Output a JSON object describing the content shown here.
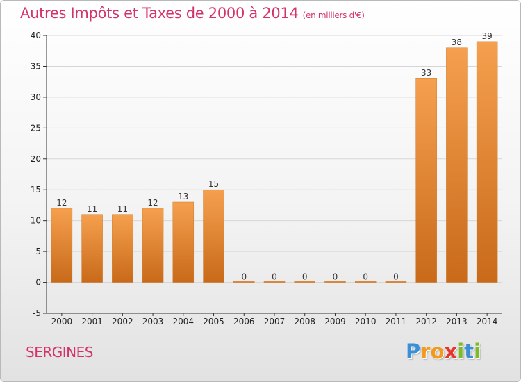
{
  "chart_data": {
    "type": "bar",
    "title": "Autres Impôts et Taxes de 2000 à 2014",
    "unit": "(en milliers d'€)",
    "categories": [
      "2000",
      "2001",
      "2002",
      "2003",
      "2004",
      "2005",
      "2006",
      "2007",
      "2008",
      "2009",
      "2010",
      "2011",
      "2012",
      "2013",
      "2014"
    ],
    "values": [
      12,
      11,
      11,
      12,
      13,
      15,
      0,
      0,
      0,
      0,
      0,
      0,
      33,
      38,
      39
    ],
    "ylim": [
      -5,
      40
    ],
    "yticks": [
      -5,
      0,
      5,
      10,
      15,
      20,
      25,
      30,
      35,
      40
    ],
    "grid": "horizontal",
    "bar_color": "#f0913a",
    "bar_color_dark": "#c86a1a"
  },
  "commune": "SERGINES",
  "logo": {
    "letters": [
      "P",
      "r",
      "o",
      "x",
      "i",
      "t",
      "i"
    ],
    "colors": [
      "#3a8fd6",
      "#f29a1e",
      "#f29a1e",
      "#e8332a",
      "#7dbb2a",
      "#3a8fd6",
      "#7dbb2a"
    ]
  },
  "colors": {
    "title": "#d4326b",
    "grid": "#d6d6d6",
    "axis": "#333333"
  }
}
